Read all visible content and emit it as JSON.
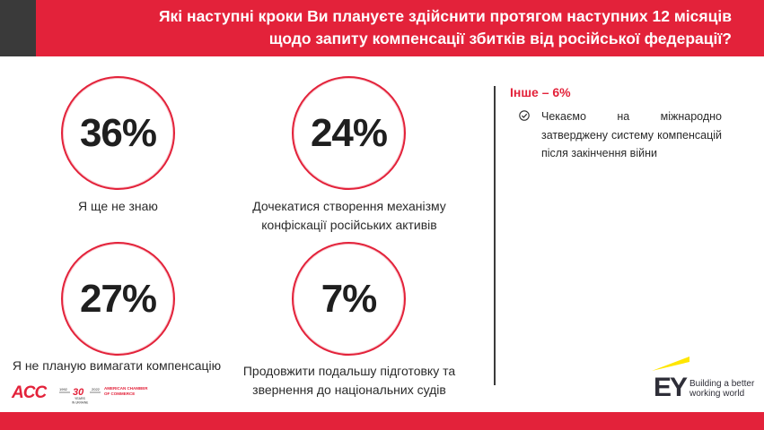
{
  "header": {
    "title_line1": "Які наступні кроки Ви плануєте здійснити протягом наступних 12 місяців",
    "title_line2": "щодо запиту компенсації збитків від російської федерації?"
  },
  "stats": [
    {
      "value": "36%",
      "label_line1": "Я ще не знаю",
      "label_line2": ""
    },
    {
      "value": "24%",
      "label_line1": "Дочекатися створення механізму",
      "label_line2": "конфіскації російських активів"
    },
    {
      "value": "27%",
      "label_line1": "Я не планую вимагати компенсацію",
      "label_line2": ""
    },
    {
      "value": "7%",
      "label_line1": "Продовжити подальшу підготовку та",
      "label_line2": "звернення до національних судів"
    }
  ],
  "other": {
    "title": "Інше – 6%",
    "text": "Чекаємо на міжнародно затверджену систему компенсацій після закінчення війни",
    "icon": "check-circle-icon"
  },
  "colors": {
    "accent": "#e3223a",
    "dark": "#3a3a3a",
    "ey_yellow": "#ffe600"
  },
  "logos": {
    "acc": "ACC",
    "acc_years_left": "1992",
    "acc_years_right": "2022",
    "acc_30": "30",
    "acc_years_word": "YEARS",
    "acc_in_ukraine": "IN UKRAINE",
    "acc_chamber_line1": "AMERICAN CHAMBER",
    "acc_chamber_line2": "OF COMMERCE",
    "ey_mark": "EY",
    "ey_tag_line1": "Building a better",
    "ey_tag_line2": "working world"
  }
}
